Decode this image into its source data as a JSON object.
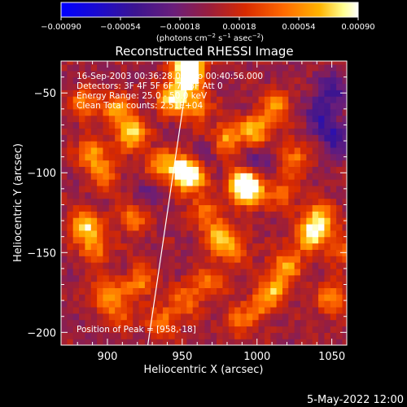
{
  "chart_data": {
    "type": "heatmap",
    "title": "Reconstructed RHESSI Image",
    "xlabel": "Heliocentric X (arcsec)",
    "ylabel": "Heliocentric Y (arcsec)",
    "xlim": [
      869,
      1060
    ],
    "ylim": [
      -208,
      -30
    ],
    "xticks": [
      900,
      950,
      1000,
      1050
    ],
    "yticks": [
      -50,
      -100,
      -150,
      -200
    ],
    "xtick_labels": [
      "900",
      "950",
      "1000",
      "1050"
    ],
    "ytick_labels": [
      "−50",
      "−100",
      "−150",
      "−200"
    ],
    "colorbar": {
      "range": [
        -0.0009,
        0.0009
      ],
      "ticks": [
        -0.0009,
        -0.00054,
        -0.00018,
        0.00018,
        0.00054,
        0.0009
      ],
      "tick_labels": [
        "−0.00090",
        "−0.00054",
        "−0.00018",
        "0.00018",
        "0.00054",
        "0.00090"
      ],
      "unit_main": "(photons cm",
      "unit_sup1": "−2",
      "unit_mid": " s",
      "unit_sup2": "−1",
      "unit_mid2": " asec",
      "unit_sup3": "−2",
      "unit_end": ")",
      "colors": [
        "#0000ff",
        "#3a0fb0",
        "#5a1e8c",
        "#8a2a7a",
        "#c8281e",
        "#ff3c00",
        "#ff8c00",
        "#ffc800",
        "#ffff80",
        "#ffffff"
      ]
    },
    "limb_line": {
      "x": [
        927,
        955
      ],
      "y": [
        -208,
        -30
      ]
    },
    "hotspots": [
      {
        "x": 953,
        "y": -32,
        "v": 0.0009
      },
      {
        "x": 951,
        "y": -42,
        "v": 0.0008
      },
      {
        "x": 941,
        "y": -55,
        "v": 0.00075
      },
      {
        "x": 957,
        "y": -60,
        "v": 0.0006
      },
      {
        "x": 905,
        "y": -62,
        "v": 0.00062
      },
      {
        "x": 914,
        "y": -77,
        "v": 0.00078
      },
      {
        "x": 882,
        "y": -58,
        "v": 0.0005
      },
      {
        "x": 888,
        "y": -90,
        "v": 0.0006
      },
      {
        "x": 897,
        "y": -103,
        "v": 0.0004
      },
      {
        "x": 934,
        "y": -97,
        "v": 0.0005
      },
      {
        "x": 948,
        "y": -100,
        "v": 0.0007
      },
      {
        "x": 955,
        "y": -105,
        "v": 0.00068
      },
      {
        "x": 915,
        "y": -130,
        "v": 0.0005
      },
      {
        "x": 883,
        "y": -135,
        "v": 0.00082
      },
      {
        "x": 890,
        "y": -150,
        "v": 0.0005
      },
      {
        "x": 898,
        "y": -177,
        "v": 0.0006
      },
      {
        "x": 920,
        "y": -170,
        "v": 0.00055
      },
      {
        "x": 907,
        "y": -190,
        "v": 0.0004
      },
      {
        "x": 935,
        "y": -195,
        "v": 0.0005
      },
      {
        "x": 951,
        "y": -181,
        "v": 0.00045
      },
      {
        "x": 962,
        "y": -125,
        "v": 0.0004
      },
      {
        "x": 978,
        "y": -80,
        "v": 0.0006
      },
      {
        "x": 997,
        "y": -75,
        "v": 0.0007
      },
      {
        "x": 988,
        "y": -108,
        "v": 0.00068
      },
      {
        "x": 993,
        "y": -113,
        "v": 0.00088
      },
      {
        "x": 1016,
        "y": -115,
        "v": 0.00045
      },
      {
        "x": 1023,
        "y": -93,
        "v": 0.0005
      },
      {
        "x": 1011,
        "y": -60,
        "v": 0.0005
      },
      {
        "x": 1040,
        "y": -132,
        "v": 0.00085
      },
      {
        "x": 1032,
        "y": -143,
        "v": 0.00065
      },
      {
        "x": 1017,
        "y": -160,
        "v": 0.0006
      },
      {
        "x": 1010,
        "y": -175,
        "v": 0.00055
      },
      {
        "x": 1000,
        "y": -185,
        "v": 0.00045
      },
      {
        "x": 1048,
        "y": -180,
        "v": 0.00055
      },
      {
        "x": 982,
        "y": -150,
        "v": 0.00055
      },
      {
        "x": 972,
        "y": -140,
        "v": 0.0006
      },
      {
        "x": 985,
        "y": -195,
        "v": 0.0004
      },
      {
        "x": 967,
        "y": -170,
        "v": 0.00045
      },
      {
        "x": 1055,
        "y": -150,
        "v": 0.0004
      },
      {
        "x": 1050,
        "y": -80,
        "v": -0.0005
      },
      {
        "x": 1040,
        "y": -65,
        "v": -0.0004
      },
      {
        "x": 1048,
        "y": -50,
        "v": -0.00045
      },
      {
        "x": 1000,
        "y": -95,
        "v": -0.0003
      },
      {
        "x": 925,
        "y": -115,
        "v": -0.0002
      },
      {
        "x": 965,
        "y": -90,
        "v": -0.00015
      }
    ]
  },
  "info": {
    "line1": "16-Sep-2003 00:36:28.000 to 00:40:56.000",
    "line2": "Detectors: 3F 4F 5F 6F 7F 8F  Att 0",
    "line3": "Energy Range: 25.0 - 50.0 keV",
    "line4": "Clean     Total counts: 2.51E+04",
    "peak": "Position of Peak = [958,-18]"
  },
  "footer": "5-May-2022 12:00"
}
